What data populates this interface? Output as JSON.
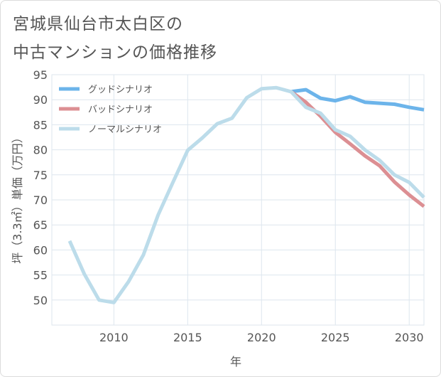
{
  "title": {
    "line1": "宮城県仙台市太白区の",
    "line2": "中古マンションの価格推移"
  },
  "colors": {
    "good": "#6cb4ea",
    "bad": "#dc8f93",
    "normal": "#bcdcea",
    "grid": "#dde6ee",
    "text": "#555555"
  },
  "chart_data": {
    "type": "line",
    "xlabel": "年",
    "ylabel": "坪（3.3㎡）単価（万円）",
    "xlim": [
      2005.8,
      2031
    ],
    "ylim": [
      45,
      95
    ],
    "x_ticks": [
      2010,
      2015,
      2020,
      2025,
      2030
    ],
    "y_ticks": [
      50,
      55,
      60,
      65,
      70,
      75,
      80,
      85,
      90,
      95
    ],
    "grid": true,
    "legend_position": "top-left",
    "series": [
      {
        "name": "グッドシナリオ",
        "color": "#6cb4ea",
        "points": [
          [
            2022,
            91.6
          ],
          [
            2023,
            92.0
          ],
          [
            2024,
            90.3
          ],
          [
            2025,
            89.8
          ],
          [
            2026,
            90.6
          ],
          [
            2027,
            89.5
          ],
          [
            2028,
            89.3
          ],
          [
            2029,
            89.1
          ],
          [
            2030,
            88.5
          ],
          [
            2031,
            88.0
          ]
        ]
      },
      {
        "name": "バッドシナリオ",
        "color": "#dc8f93",
        "points": [
          [
            2022,
            91.6
          ],
          [
            2023,
            89.5
          ],
          [
            2024,
            86.7
          ],
          [
            2025,
            83.5
          ],
          [
            2026,
            81.2
          ],
          [
            2027,
            78.8
          ],
          [
            2028,
            76.8
          ],
          [
            2029,
            73.6
          ],
          [
            2030,
            71.0
          ],
          [
            2031,
            68.7
          ]
        ]
      },
      {
        "name": "ノーマルシナリオ",
        "color": "#bcdcea",
        "points": [
          [
            2007,
            61.8
          ],
          [
            2008,
            55.2
          ],
          [
            2009,
            50.0
          ],
          [
            2010,
            49.5
          ],
          [
            2011,
            53.7
          ],
          [
            2012,
            59.0
          ],
          [
            2013,
            67.0
          ],
          [
            2014,
            73.5
          ],
          [
            2015,
            79.9
          ],
          [
            2016,
            82.4
          ],
          [
            2017,
            85.2
          ],
          [
            2018,
            86.3
          ],
          [
            2019,
            90.4
          ],
          [
            2020,
            92.2
          ],
          [
            2021,
            92.4
          ],
          [
            2022,
            91.6
          ],
          [
            2023,
            88.5
          ],
          [
            2024,
            87.3
          ],
          [
            2025,
            84.0
          ],
          [
            2026,
            82.7
          ],
          [
            2027,
            80.0
          ],
          [
            2028,
            77.9
          ],
          [
            2029,
            75.0
          ],
          [
            2030,
            73.5
          ],
          [
            2031,
            70.5
          ]
        ]
      }
    ]
  }
}
